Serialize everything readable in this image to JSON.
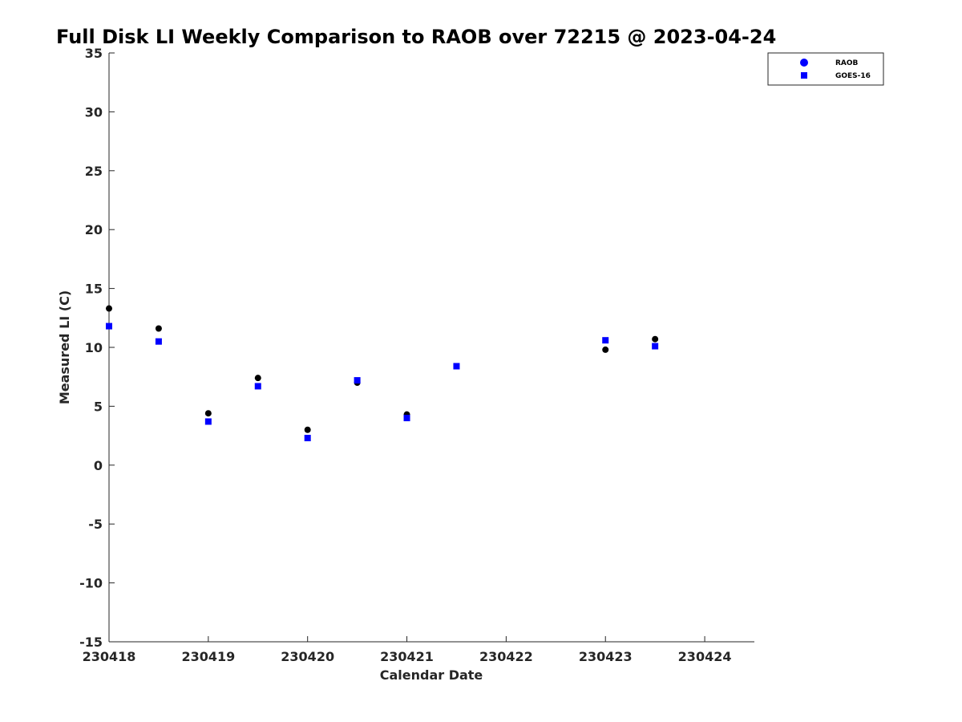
{
  "chart_data": {
    "type": "scatter",
    "title": "Full Disk LI Weekly Comparison to RAOB over 72215 @ 2023-04-24",
    "xlabel": "Calendar Date",
    "ylabel": "Measured LI (C)",
    "xlim": [
      "2023-04-18",
      "2023-04-24T12:00"
    ],
    "ylim": [
      -15,
      35
    ],
    "x_ticks": [
      {
        "date": "2023-04-18",
        "label": "230418"
      },
      {
        "date": "2023-04-19",
        "label": "230419"
      },
      {
        "date": "2023-04-20",
        "label": "230420"
      },
      {
        "date": "2023-04-21",
        "label": "230421"
      },
      {
        "date": "2023-04-22",
        "label": "230422"
      },
      {
        "date": "2023-04-23",
        "label": "230423"
      },
      {
        "date": "2023-04-24",
        "label": "230424"
      }
    ],
    "y_ticks": [
      35,
      30,
      25,
      20,
      15,
      10,
      5,
      0,
      -5,
      -10,
      -15
    ],
    "grid": false,
    "legend_position": "top-right",
    "series": [
      {
        "name": "RAOB",
        "marker": "circle",
        "color": "#000000",
        "legend_color": "#0000ff",
        "points": [
          {
            "x": "2023-04-18T00:00",
            "y": 13.3
          },
          {
            "x": "2023-04-18T12:00",
            "y": 11.6
          },
          {
            "x": "2023-04-19T00:00",
            "y": 4.4
          },
          {
            "x": "2023-04-19T12:00",
            "y": 7.4
          },
          {
            "x": "2023-04-20T00:00",
            "y": 3.0
          },
          {
            "x": "2023-04-20T12:00",
            "y": 7.0
          },
          {
            "x": "2023-04-21T00:00",
            "y": 4.3
          },
          {
            "x": "2023-04-23T00:00",
            "y": 9.8
          },
          {
            "x": "2023-04-23T12:00",
            "y": 10.7
          }
        ]
      },
      {
        "name": "GOES-16",
        "marker": "square",
        "color": "#0000ff",
        "legend_color": "#0000ff",
        "points": [
          {
            "x": "2023-04-18T00:00",
            "y": 11.8
          },
          {
            "x": "2023-04-18T12:00",
            "y": 10.5
          },
          {
            "x": "2023-04-19T00:00",
            "y": 3.7
          },
          {
            "x": "2023-04-19T12:00",
            "y": 6.7
          },
          {
            "x": "2023-04-20T00:00",
            "y": 2.3
          },
          {
            "x": "2023-04-20T12:00",
            "y": 7.2
          },
          {
            "x": "2023-04-21T00:00",
            "y": 4.0
          },
          {
            "x": "2023-04-21T12:00",
            "y": 8.4
          },
          {
            "x": "2023-04-23T00:00",
            "y": 10.6
          },
          {
            "x": "2023-04-23T12:00",
            "y": 10.1
          }
        ]
      }
    ]
  }
}
